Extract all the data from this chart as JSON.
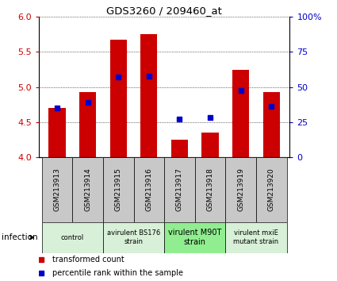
{
  "title": "GDS3260 / 209460_at",
  "samples": [
    "GSM213913",
    "GSM213914",
    "GSM213915",
    "GSM213916",
    "GSM213917",
    "GSM213918",
    "GSM213919",
    "GSM213920"
  ],
  "red_values": [
    4.7,
    4.93,
    5.68,
    5.75,
    4.25,
    4.35,
    5.24,
    4.93
  ],
  "blue_values": [
    4.7,
    4.78,
    5.14,
    5.15,
    4.55,
    4.57,
    4.95,
    4.73
  ],
  "ylim": [
    4.0,
    6.0
  ],
  "yticks": [
    4.0,
    4.5,
    5.0,
    5.5,
    6.0
  ],
  "right_yticks": [
    0,
    25,
    50,
    75,
    100
  ],
  "right_ylabels": [
    "0",
    "25",
    "50",
    "75",
    "100%"
  ],
  "bar_color": "#cc0000",
  "blue_color": "#0000cc",
  "bar_width": 0.55,
  "left_label_color": "#cc0000",
  "right_label_color": "#0000cc",
  "infection_label": "infection",
  "legend_red": "transformed count",
  "legend_blue": "percentile rank within the sample",
  "sample_box_color": "#c8c8c8",
  "group_boxes": [
    {
      "label": "control",
      "start": 0,
      "end": 1,
      "color": "#d8f0d8"
    },
    {
      "label": "avirulent BS176\nstrain",
      "start": 2,
      "end": 3,
      "color": "#d8f0d8"
    },
    {
      "label": "virulent M90T\nstrain",
      "start": 4,
      "end": 5,
      "color": "#90EE90"
    },
    {
      "label": "virulent mxiE\nmutant strain",
      "start": 6,
      "end": 7,
      "color": "#d8f0d8"
    }
  ]
}
